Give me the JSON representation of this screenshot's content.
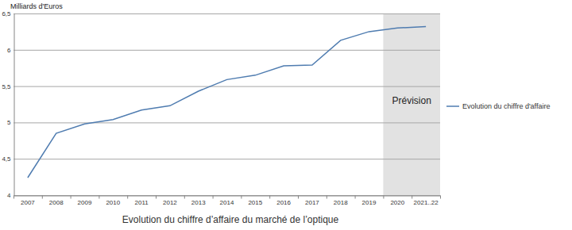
{
  "chart_data": {
    "type": "line",
    "title": "Evolution du chiffre d’affaire du marché de l’optique",
    "y_label": "Milliards d'Euros",
    "categories": [
      "2007",
      "2008",
      "2009",
      "2010",
      "2011",
      "2012",
      "2013",
      "2014",
      "2015",
      "2016",
      "2017",
      "2018",
      "2019",
      "2020",
      "2021..22"
    ],
    "series": [
      {
        "name": "Evolution du chiffre d'affaire",
        "color": "#4f7cb0",
        "values": [
          4.24,
          4.85,
          4.98,
          5.04,
          5.17,
          5.23,
          5.43,
          5.59,
          5.65,
          5.78,
          5.79,
          6.13,
          6.25,
          6.3,
          6.32
        ]
      }
    ],
    "ylim": [
      4,
      6.5
    ],
    "yticks": [
      4,
      {
        "value": 4.5,
        "label": "4,5"
      },
      5,
      {
        "value": 5.5,
        "label": "5,5"
      },
      6,
      {
        "value": 6.5,
        "label": "6,5"
      }
    ],
    "grid": true,
    "legend": "right",
    "annotations": [
      {
        "text": "Prévision",
        "start": "2020",
        "end": "2021..22"
      }
    ]
  }
}
